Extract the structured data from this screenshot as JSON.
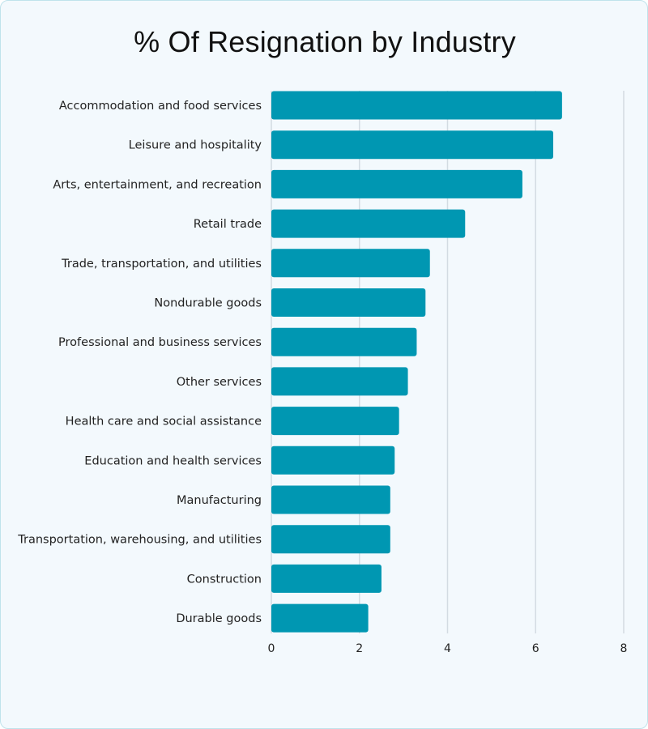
{
  "chart_data": {
    "type": "bar",
    "orientation": "horizontal",
    "title": "% Of Resignation by Industry",
    "xlabel": "",
    "ylabel": "",
    "categories": [
      "Accommodation and food services",
      "Leisure and hospitality",
      "Arts, entertainment, and recreation",
      "Retail trade",
      "Trade, transportation, and utilities",
      "Nondurable goods",
      "Professional and business services",
      "Other services",
      "Health care and social assistance",
      "Education and health services",
      "Manufacturing",
      "Transportation, warehousing, and utilities",
      "Construction",
      "Durable goods"
    ],
    "values": [
      6.6,
      6.4,
      5.7,
      4.4,
      3.6,
      3.5,
      3.3,
      3.1,
      2.9,
      2.8,
      2.7,
      2.7,
      2.5,
      2.2
    ],
    "xlim": [
      0,
      8
    ],
    "xticks": [
      "0",
      "2",
      "4",
      "6",
      "8"
    ],
    "grid": true,
    "legend": "none",
    "colors": {
      "bar": "#0097b2",
      "grid": "#d3dbe2",
      "background": "#f3f9fd"
    }
  }
}
